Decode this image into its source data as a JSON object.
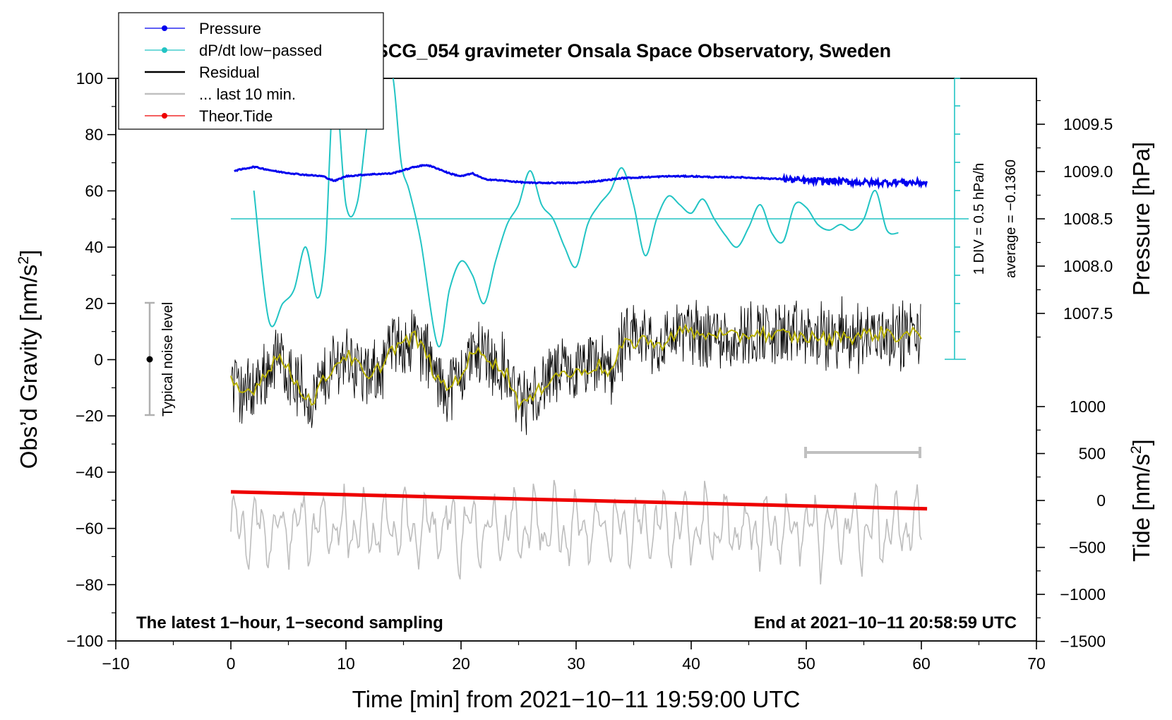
{
  "chart_data": {
    "type": "line",
    "title": "SCG_054 gravimeter Onsala Space Observatory, Sweden",
    "xlabel": "Time [min] from 2021−10−11 19:59:00 UTC",
    "xlim": [
      -10,
      70
    ],
    "x_ticks": [
      "−10",
      "0",
      "10",
      "20",
      "30",
      "40",
      "50",
      "60",
      "70"
    ],
    "left_axis": {
      "label_main": "Obs’d Gravity [nm/s",
      "label_sup": "2",
      "label_end": "]",
      "ylim": [
        -100,
        100
      ],
      "ticks": [
        "−100",
        "−80",
        "−60",
        "−40",
        "−20",
        "0",
        "20",
        "40",
        "60",
        "80",
        "100"
      ]
    },
    "right_pressure_axis": {
      "label": "Pressure [hPa]",
      "ticks": [
        "1007.5",
        "1008.0",
        "1008.5",
        "1009.0",
        "1009.5"
      ],
      "tick_values": [
        1007.5,
        1008.0,
        1008.5,
        1009.0,
        1009.5
      ]
    },
    "right_tide_axis": {
      "label_main": "Tide [nm/s",
      "label_sup": "2",
      "label_end": "]",
      "ticks": [
        "−1500",
        "−1000",
        "−500",
        "0",
        "500",
        "1000"
      ],
      "tick_values": [
        -1500,
        -1000,
        -500,
        0,
        500,
        1000
      ]
    },
    "legend": [
      {
        "name": "Pressure",
        "color": "#0000ee",
        "marker": true
      },
      {
        "name": "dP/dt low−passed",
        "color": "#22c4c4",
        "marker": true
      },
      {
        "name": "Residual",
        "color": "#000000",
        "marker": false
      },
      {
        "name": "... last 10 min.",
        "color": "#c0c0c0",
        "marker": false
      },
      {
        "name": "Theor.Tide",
        "color": "#ee0000",
        "marker": true
      }
    ],
    "series": [
      {
        "name": "Pressure",
        "units": "hPa",
        "x": [
          0,
          2,
          4,
          6,
          8,
          9,
          10,
          12,
          14,
          16,
          17,
          18,
          19,
          20,
          21,
          22,
          24,
          26,
          28,
          30,
          32,
          34,
          36,
          38,
          40,
          42,
          44,
          46,
          48,
          50,
          52,
          54,
          56,
          58,
          60
        ],
        "values": [
          1009.0,
          1009.05,
          1009.0,
          1008.97,
          1008.95,
          1008.9,
          1008.95,
          1008.97,
          1008.98,
          1009.05,
          1009.07,
          1009.03,
          1008.98,
          1008.95,
          1008.98,
          1008.92,
          1008.9,
          1008.88,
          1008.88,
          1008.88,
          1008.9,
          1008.93,
          1008.94,
          1008.95,
          1008.95,
          1008.94,
          1008.94,
          1008.93,
          1008.92,
          1008.9,
          1008.9,
          1008.89,
          1008.88,
          1008.89,
          1008.88
        ]
      },
      {
        "name": "dP/dt low−passed",
        "units": "hPa/h",
        "x": [
          2,
          3.3,
          4.5,
          5.5,
          6.5,
          7.5,
          8.2,
          9,
          10,
          11,
          12,
          13,
          14,
          14.8,
          15.5,
          16.5,
          18,
          19,
          20,
          21,
          22,
          23,
          24,
          25,
          26,
          27,
          28,
          29,
          30,
          31,
          32,
          33,
          34,
          35,
          36,
          37,
          38,
          39,
          40,
          41,
          42,
          43,
          44,
          45,
          46,
          47,
          48,
          49,
          50,
          51,
          52,
          53,
          54,
          55,
          56,
          57,
          58
        ],
        "values": [
          60,
          14,
          20,
          25,
          40,
          22,
          38,
          98,
          55,
          56,
          88,
          100,
          102,
          70,
          60,
          42,
          5,
          25,
          35,
          30,
          20,
          35,
          48,
          55,
          67,
          55,
          50,
          40,
          33,
          48,
          55,
          60,
          68,
          55,
          37,
          50,
          58,
          55,
          52,
          57,
          50,
          44,
          40,
          47,
          55,
          45,
          42,
          55,
          54,
          48,
          46,
          48,
          46,
          50,
          60,
          46,
          45
        ]
      },
      {
        "name": "Residual (smoothed)",
        "units": "nm/s2",
        "x": [
          0,
          1,
          2,
          3,
          4,
          5,
          6,
          7,
          8,
          9,
          10,
          11,
          12,
          13,
          14,
          15,
          16,
          17,
          18,
          19,
          20,
          21,
          22,
          23,
          24,
          25,
          26,
          27,
          28,
          29,
          30,
          31,
          32,
          33,
          34,
          35,
          36,
          37,
          38,
          39,
          40,
          41,
          42,
          43,
          44,
          45,
          46,
          47,
          48,
          49,
          50,
          51,
          52,
          53,
          54,
          55,
          56,
          57,
          58,
          59,
          60
        ],
        "values": [
          -8,
          -12,
          -10,
          -5,
          2,
          -4,
          -10,
          -15,
          -8,
          -2,
          2,
          -2,
          -8,
          -2,
          4,
          6,
          8,
          2,
          -8,
          -10,
          -5,
          2,
          3,
          -2,
          -5,
          -15,
          -15,
          -10,
          -5,
          -5,
          -5,
          -3,
          -2,
          -5,
          5,
          6,
          8,
          4,
          8,
          10,
          10,
          8,
          10,
          8,
          8,
          9,
          10,
          8,
          9,
          8,
          8,
          8,
          7,
          9,
          8,
          9,
          9,
          10,
          8,
          9,
          9
        ]
      },
      {
        "name": "Theor.Tide",
        "units": "nm/s2",
        "x": [
          0,
          10,
          20,
          30,
          40,
          50,
          60.5
        ],
        "values": [
          -47,
          -48,
          -49,
          -50,
          -51,
          -52,
          -53
        ]
      }
    ],
    "annotations": {
      "dpdt_scale_1": "1 DIV = 0.5 hPa/h",
      "dpdt_scale_2": "average = −0.1360",
      "noise_label": "Typical noise level",
      "bottom_left": "The latest 1−hour, 1−second sampling",
      "bottom_right": "End at 2021−10−11 20:58:59 UTC"
    }
  }
}
